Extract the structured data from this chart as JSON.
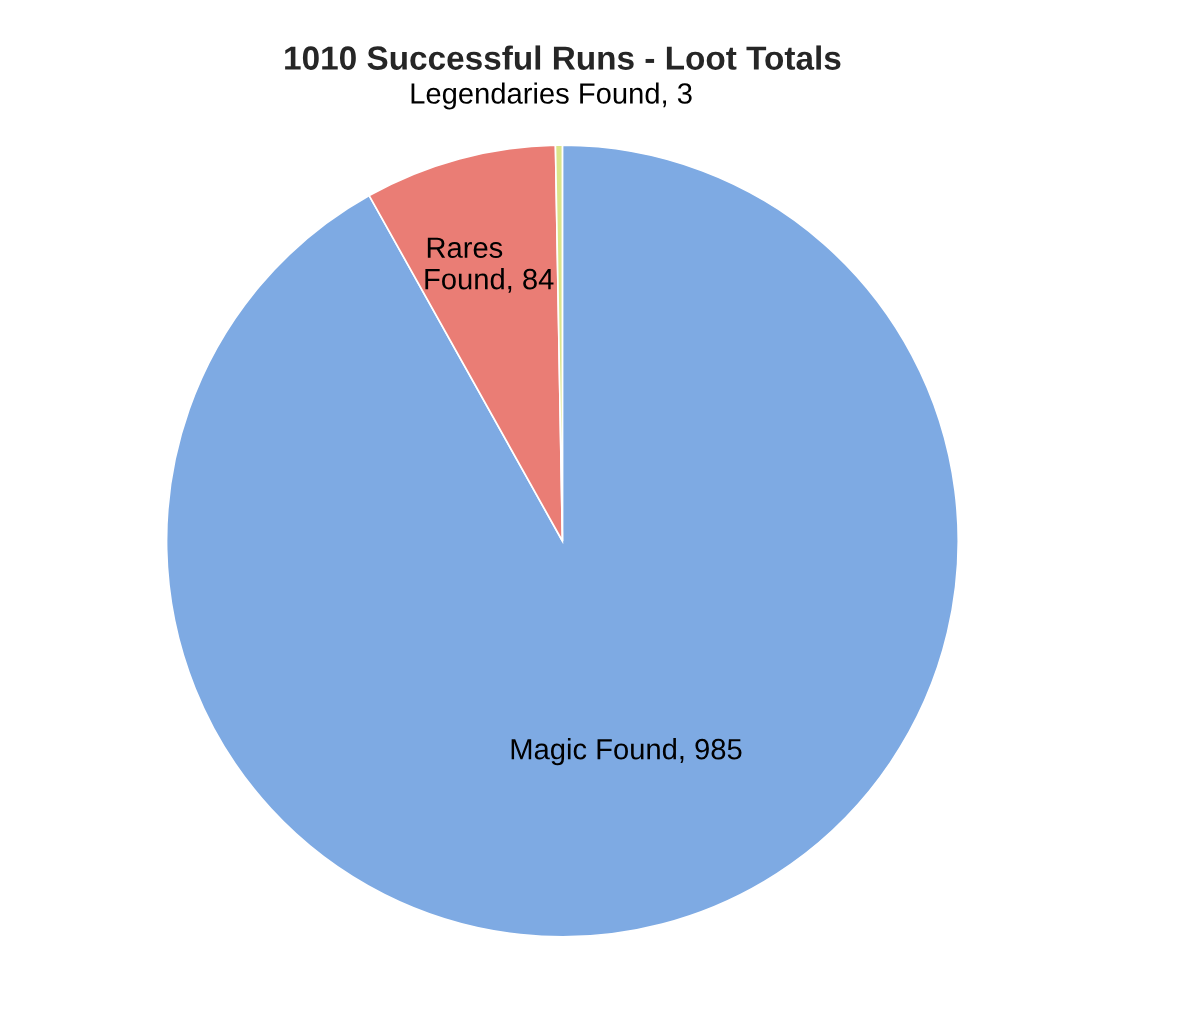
{
  "chart_data": {
    "type": "pie",
    "title": "1010 Successful Runs - Loot Totals",
    "categories": [
      "Magic Found",
      "Rares Found",
      "Legendaries Found"
    ],
    "values": [
      985,
      84,
      3
    ],
    "colors": [
      "#7eaae3",
      "#ea7d75",
      "#dbe58a"
    ],
    "value_labels": [
      ", 985",
      ", 84",
      ", 3"
    ],
    "legend": false
  }
}
